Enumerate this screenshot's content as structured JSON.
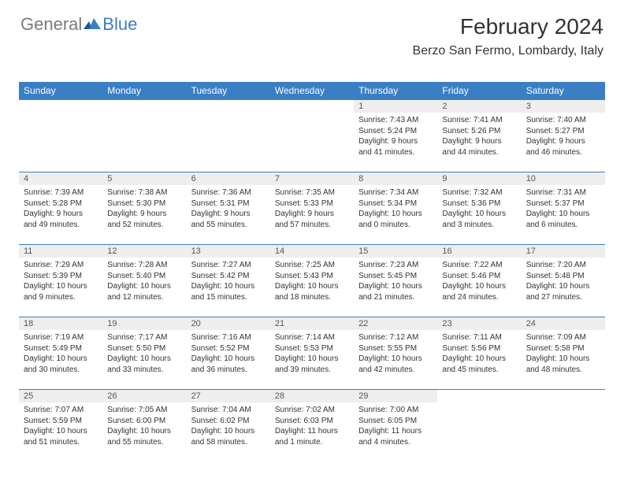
{
  "logo": {
    "text_gray": "General",
    "text_blue": "Blue"
  },
  "header": {
    "month": "February 2024",
    "location": "Berzo San Fermo, Lombardy, Italy"
  },
  "colors": {
    "accent": "#3a7fc4",
    "daynum_bg": "#eeeeee",
    "text": "#333333"
  },
  "day_names": [
    "Sunday",
    "Monday",
    "Tuesday",
    "Wednesday",
    "Thursday",
    "Friday",
    "Saturday"
  ],
  "weeks": [
    [
      null,
      null,
      null,
      null,
      {
        "n": "1",
        "sr": "Sunrise: 7:43 AM",
        "ss": "Sunset: 5:24 PM",
        "dl": "Daylight: 9 hours and 41 minutes."
      },
      {
        "n": "2",
        "sr": "Sunrise: 7:41 AM",
        "ss": "Sunset: 5:26 PM",
        "dl": "Daylight: 9 hours and 44 minutes."
      },
      {
        "n": "3",
        "sr": "Sunrise: 7:40 AM",
        "ss": "Sunset: 5:27 PM",
        "dl": "Daylight: 9 hours and 46 minutes."
      }
    ],
    [
      {
        "n": "4",
        "sr": "Sunrise: 7:39 AM",
        "ss": "Sunset: 5:28 PM",
        "dl": "Daylight: 9 hours and 49 minutes."
      },
      {
        "n": "5",
        "sr": "Sunrise: 7:38 AM",
        "ss": "Sunset: 5:30 PM",
        "dl": "Daylight: 9 hours and 52 minutes."
      },
      {
        "n": "6",
        "sr": "Sunrise: 7:36 AM",
        "ss": "Sunset: 5:31 PM",
        "dl": "Daylight: 9 hours and 55 minutes."
      },
      {
        "n": "7",
        "sr": "Sunrise: 7:35 AM",
        "ss": "Sunset: 5:33 PM",
        "dl": "Daylight: 9 hours and 57 minutes."
      },
      {
        "n": "8",
        "sr": "Sunrise: 7:34 AM",
        "ss": "Sunset: 5:34 PM",
        "dl": "Daylight: 10 hours and 0 minutes."
      },
      {
        "n": "9",
        "sr": "Sunrise: 7:32 AM",
        "ss": "Sunset: 5:36 PM",
        "dl": "Daylight: 10 hours and 3 minutes."
      },
      {
        "n": "10",
        "sr": "Sunrise: 7:31 AM",
        "ss": "Sunset: 5:37 PM",
        "dl": "Daylight: 10 hours and 6 minutes."
      }
    ],
    [
      {
        "n": "11",
        "sr": "Sunrise: 7:29 AM",
        "ss": "Sunset: 5:39 PM",
        "dl": "Daylight: 10 hours and 9 minutes."
      },
      {
        "n": "12",
        "sr": "Sunrise: 7:28 AM",
        "ss": "Sunset: 5:40 PM",
        "dl": "Daylight: 10 hours and 12 minutes."
      },
      {
        "n": "13",
        "sr": "Sunrise: 7:27 AM",
        "ss": "Sunset: 5:42 PM",
        "dl": "Daylight: 10 hours and 15 minutes."
      },
      {
        "n": "14",
        "sr": "Sunrise: 7:25 AM",
        "ss": "Sunset: 5:43 PM",
        "dl": "Daylight: 10 hours and 18 minutes."
      },
      {
        "n": "15",
        "sr": "Sunrise: 7:23 AM",
        "ss": "Sunset: 5:45 PM",
        "dl": "Daylight: 10 hours and 21 minutes."
      },
      {
        "n": "16",
        "sr": "Sunrise: 7:22 AM",
        "ss": "Sunset: 5:46 PM",
        "dl": "Daylight: 10 hours and 24 minutes."
      },
      {
        "n": "17",
        "sr": "Sunrise: 7:20 AM",
        "ss": "Sunset: 5:48 PM",
        "dl": "Daylight: 10 hours and 27 minutes."
      }
    ],
    [
      {
        "n": "18",
        "sr": "Sunrise: 7:19 AM",
        "ss": "Sunset: 5:49 PM",
        "dl": "Daylight: 10 hours and 30 minutes."
      },
      {
        "n": "19",
        "sr": "Sunrise: 7:17 AM",
        "ss": "Sunset: 5:50 PM",
        "dl": "Daylight: 10 hours and 33 minutes."
      },
      {
        "n": "20",
        "sr": "Sunrise: 7:16 AM",
        "ss": "Sunset: 5:52 PM",
        "dl": "Daylight: 10 hours and 36 minutes."
      },
      {
        "n": "21",
        "sr": "Sunrise: 7:14 AM",
        "ss": "Sunset: 5:53 PM",
        "dl": "Daylight: 10 hours and 39 minutes."
      },
      {
        "n": "22",
        "sr": "Sunrise: 7:12 AM",
        "ss": "Sunset: 5:55 PM",
        "dl": "Daylight: 10 hours and 42 minutes."
      },
      {
        "n": "23",
        "sr": "Sunrise: 7:11 AM",
        "ss": "Sunset: 5:56 PM",
        "dl": "Daylight: 10 hours and 45 minutes."
      },
      {
        "n": "24",
        "sr": "Sunrise: 7:09 AM",
        "ss": "Sunset: 5:58 PM",
        "dl": "Daylight: 10 hours and 48 minutes."
      }
    ],
    [
      {
        "n": "25",
        "sr": "Sunrise: 7:07 AM",
        "ss": "Sunset: 5:59 PM",
        "dl": "Daylight: 10 hours and 51 minutes."
      },
      {
        "n": "26",
        "sr": "Sunrise: 7:05 AM",
        "ss": "Sunset: 6:00 PM",
        "dl": "Daylight: 10 hours and 55 minutes."
      },
      {
        "n": "27",
        "sr": "Sunrise: 7:04 AM",
        "ss": "Sunset: 6:02 PM",
        "dl": "Daylight: 10 hours and 58 minutes."
      },
      {
        "n": "28",
        "sr": "Sunrise: 7:02 AM",
        "ss": "Sunset: 6:03 PM",
        "dl": "Daylight: 11 hours and 1 minute."
      },
      {
        "n": "29",
        "sr": "Sunrise: 7:00 AM",
        "ss": "Sunset: 6:05 PM",
        "dl": "Daylight: 11 hours and 4 minutes."
      },
      null,
      null
    ]
  ]
}
